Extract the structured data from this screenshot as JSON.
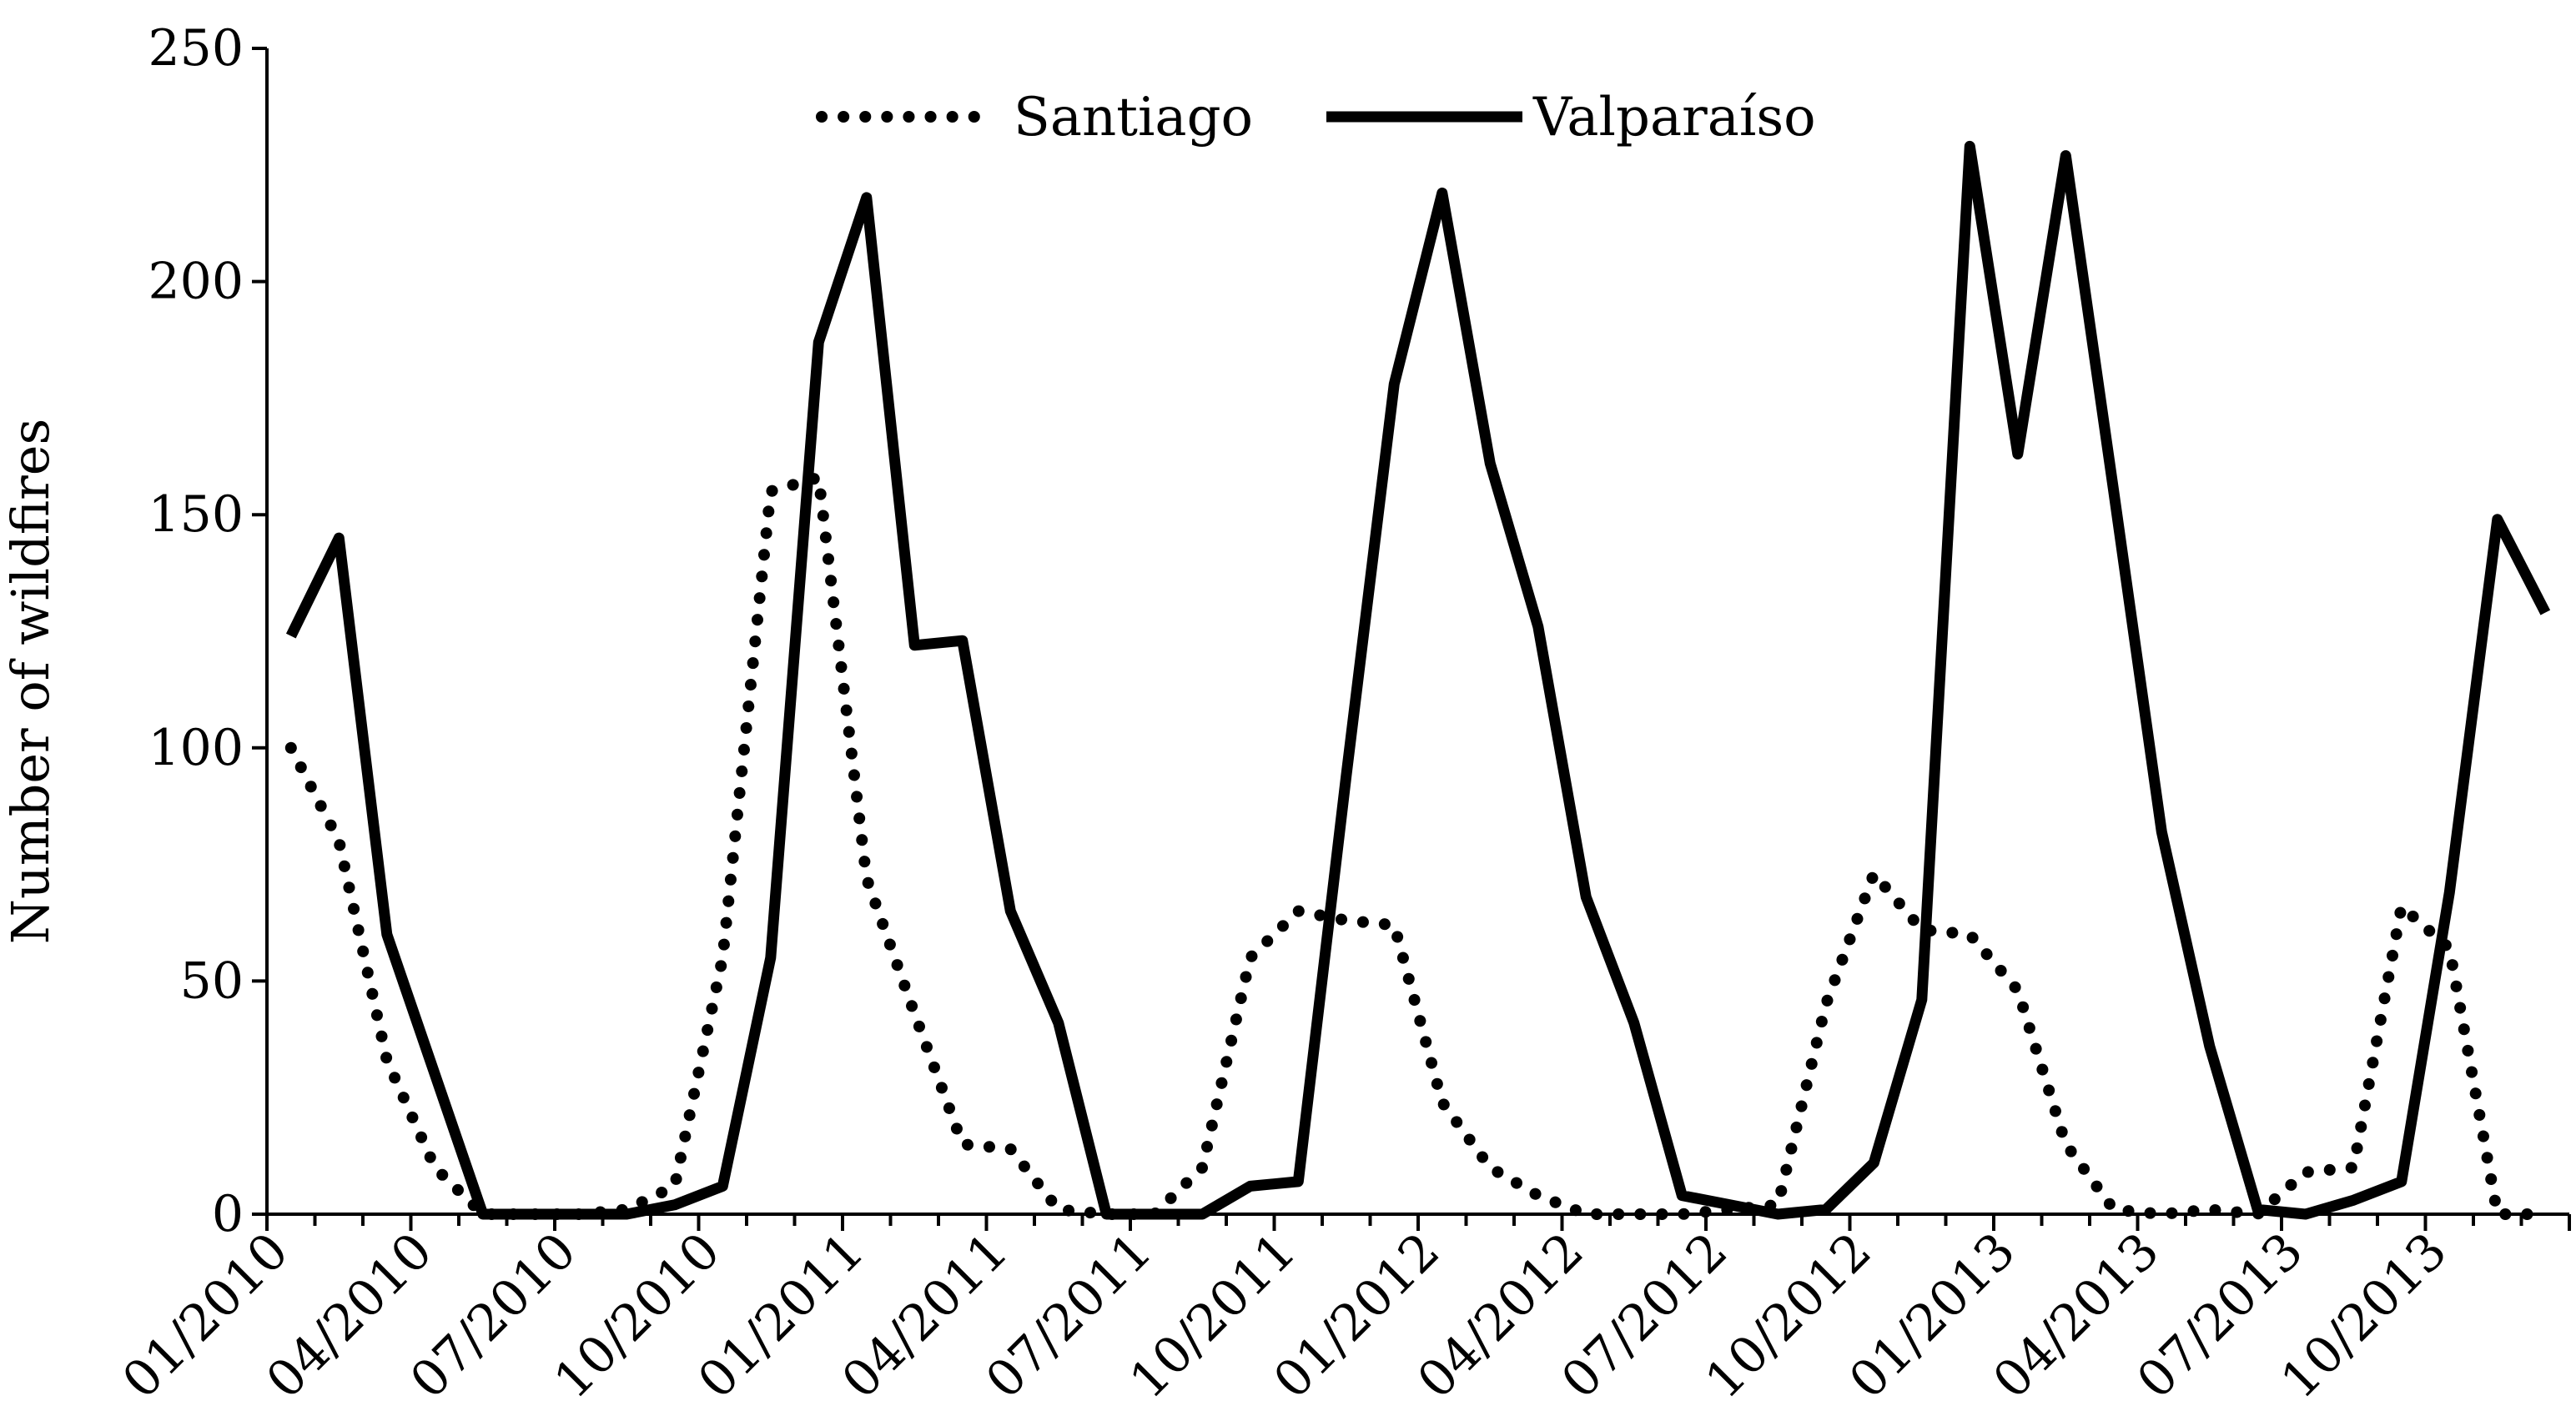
{
  "chart_data": {
    "type": "line",
    "title": "",
    "xlabel": "",
    "ylabel": "Number of wildfires",
    "ylim": [
      0,
      250
    ],
    "yticks": [
      "0",
      "50",
      "100",
      "150",
      "200",
      "250"
    ],
    "xtick_labels": [
      "01/2010",
      "04/2010",
      "07/2010",
      "10/2010",
      "01/2011",
      "04/2011",
      "07/2011",
      "10/2011",
      "01/2012",
      "04/2012",
      "07/2012",
      "10/2012",
      "01/2013",
      "04/2013",
      "07/2013",
      "10/2013"
    ],
    "x": [
      "01/2010",
      "02/2010",
      "03/2010",
      "04/2010",
      "05/2010",
      "06/2010",
      "07/2010",
      "08/2010",
      "09/2010",
      "10/2010",
      "11/2010",
      "12/2010",
      "01/2011",
      "02/2011",
      "03/2011",
      "04/2011",
      "05/2011",
      "06/2011",
      "07/2011",
      "08/2011",
      "09/2011",
      "10/2011",
      "11/2011",
      "12/2011",
      "01/2012",
      "02/2012",
      "03/2012",
      "04/2012",
      "05/2012",
      "06/2012",
      "07/2012",
      "08/2012",
      "09/2012",
      "10/2012",
      "11/2012",
      "12/2012",
      "01/2013",
      "02/2013",
      "03/2013",
      "04/2013",
      "05/2013",
      "06/2013",
      "07/2013",
      "08/2013",
      "09/2013",
      "10/2013",
      "11/2013",
      "12/2013"
    ],
    "grid": false,
    "legend": "top-center",
    "series": [
      {
        "name": "Santiago",
        "style": "dotted",
        "color": "#000000",
        "values": [
          100,
          80,
          33,
          10,
          0,
          0,
          0,
          1,
          6,
          55,
          155,
          158,
          72,
          43,
          15,
          14,
          1,
          0,
          0,
          10,
          55,
          65,
          63,
          62,
          24,
          10,
          4,
          0,
          0,
          0,
          1,
          2,
          45,
          73,
          61,
          60,
          48,
          15,
          1,
          0,
          1,
          0,
          9,
          10,
          66,
          57,
          0,
          0
        ]
      },
      {
        "name": "Valparaíso",
        "style": "solid",
        "color": "#000000",
        "values": [
          124,
          145,
          60,
          30,
          0,
          0,
          0,
          0,
          2,
          6,
          55,
          187,
          218,
          122,
          123,
          65,
          41,
          0,
          0,
          0,
          6,
          7,
          94,
          178,
          219,
          161,
          126,
          68,
          41,
          4,
          2,
          0,
          1,
          11,
          46,
          229,
          163,
          227,
          155,
          82,
          36,
          1,
          0,
          3,
          7,
          69,
          149,
          129
        ]
      }
    ]
  }
}
